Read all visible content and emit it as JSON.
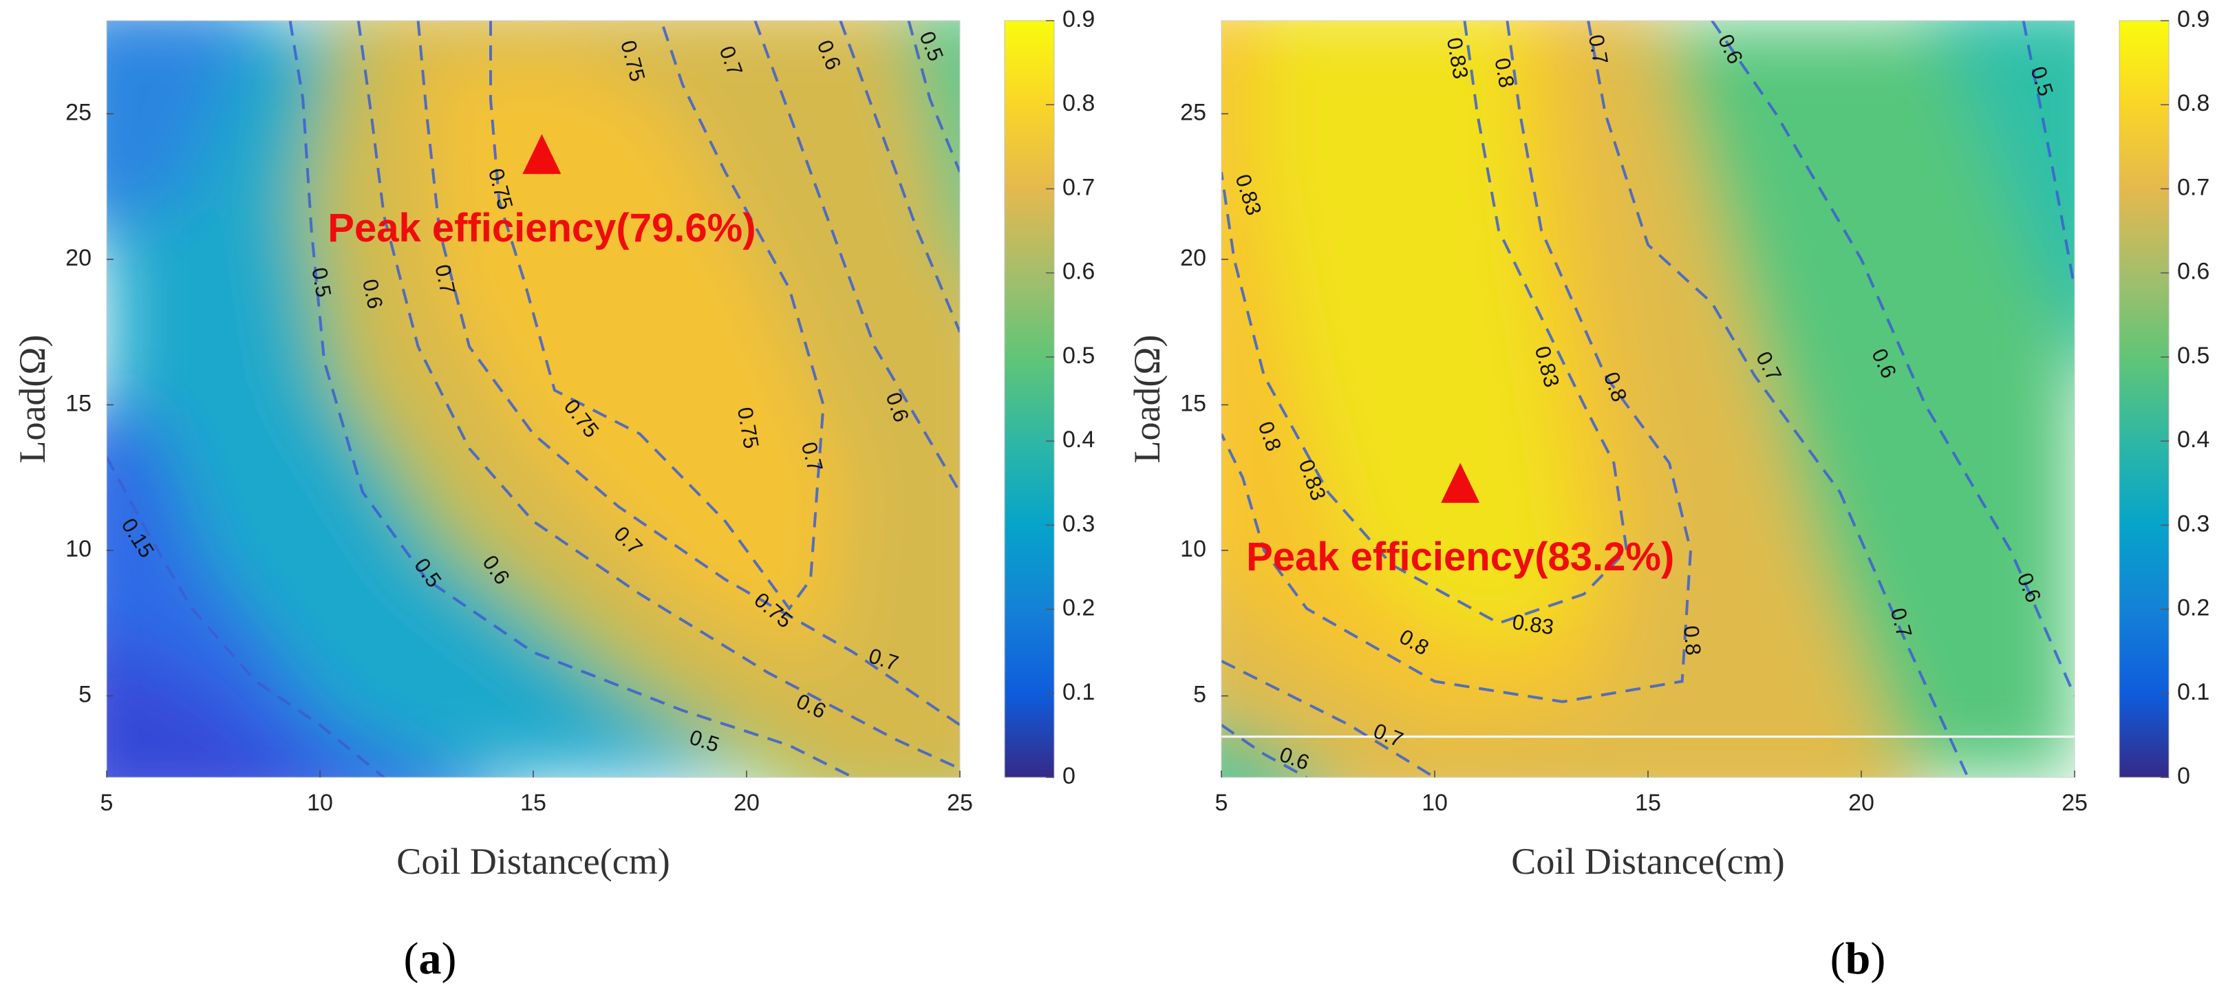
{
  "chart_data": [
    {
      "type": "heatmap",
      "subtype": "filled-contour",
      "panel_label": "a",
      "xlabel": "Coil Distance(cm)",
      "ylabel": "Load(Ω)",
      "xlim": [
        5,
        25
      ],
      "ylim": [
        2.2,
        28.2
      ],
      "xticks": [
        5,
        10,
        15,
        20,
        25
      ],
      "yticks": [
        5,
        10,
        15,
        20,
        25
      ],
      "colorbar": {
        "min": 0,
        "max": 0.9,
        "ticks": [
          0,
          0.1,
          0.2,
          0.3,
          0.4,
          0.5,
          0.6,
          0.7,
          0.8,
          0.9
        ]
      },
      "peak": {
        "x": 15.2,
        "y": 23.5,
        "label": "Peak efficiency(79.6%)",
        "value": 0.796
      },
      "contours": [
        {
          "level": 0.15,
          "points": [
            [
              5,
              13.2
            ],
            [
              6,
              10.5
            ],
            [
              7,
              8
            ],
            [
              8.5,
              5.5
            ],
            [
              10,
              4
            ],
            [
              11.5,
              2.2
            ]
          ],
          "labels": [
            {
              "text": "0.15",
              "x": 5.7,
              "y": 10.4,
              "angle": 58
            }
          ]
        },
        {
          "level": 0.5,
          "points": [
            [
              9.3,
              28.2
            ],
            [
              9.6,
              25.5
            ],
            [
              9.8,
              21
            ],
            [
              10.1,
              16.5
            ],
            [
              11,
              12
            ],
            [
              12.5,
              9
            ],
            [
              15,
              6.5
            ],
            [
              18.5,
              4.5
            ],
            [
              21,
              3.3
            ],
            [
              22.5,
              2.2
            ]
          ],
          "labels": [
            {
              "text": "0.5",
              "x": 10,
              "y": 19.2,
              "angle": 80
            },
            {
              "text": "0.5",
              "x": 12.5,
              "y": 9.2,
              "angle": 55
            },
            {
              "text": "0.5",
              "x": 19,
              "y": 3.4,
              "angle": 18
            }
          ]
        },
        {
          "level": 0.6,
          "points": [
            [
              10.9,
              28.2
            ],
            [
              11.2,
              25
            ],
            [
              11.5,
              21.5
            ],
            [
              12.3,
              17
            ],
            [
              13.5,
              13.5
            ],
            [
              15,
              11
            ],
            [
              17.5,
              8.5
            ],
            [
              20.5,
              5.8
            ],
            [
              23.5,
              3.5
            ],
            [
              25,
              2.5
            ]
          ],
          "labels": [
            {
              "text": "0.6",
              "x": 11.2,
              "y": 18.8,
              "angle": 78
            },
            {
              "text": "0.6",
              "x": 14.1,
              "y": 9.3,
              "angle": 55
            },
            {
              "text": "0.6",
              "x": 21.5,
              "y": 4.6,
              "angle": 25
            }
          ]
        },
        {
          "level": 0.7,
          "points": [
            [
              12.3,
              28.2
            ],
            [
              12.5,
              25
            ],
            [
              12.8,
              21
            ],
            [
              13.5,
              17
            ],
            [
              15,
              14
            ],
            [
              17,
              11.5
            ],
            [
              19.5,
              9
            ],
            [
              22.5,
              6.5
            ],
            [
              25,
              4
            ]
          ],
          "labels": [
            {
              "text": "0.7",
              "x": 12.9,
              "y": 19.3,
              "angle": 78
            },
            {
              "text": "0.7",
              "x": 17.2,
              "y": 10.3,
              "angle": 45
            },
            {
              "text": "0.7",
              "x": 23.2,
              "y": 6.2,
              "angle": 18
            }
          ]
        },
        {
          "level": 0.75,
          "points": [
            [
              14,
              28.2
            ],
            [
              14,
              25.5
            ],
            [
              14.2,
              22
            ],
            [
              14.8,
              19.2
            ],
            [
              15.5,
              15.5
            ],
            [
              17.5,
              14
            ],
            [
              19.5,
              11
            ],
            [
              21,
              8
            ],
            [
              21.5,
              9
            ],
            [
              21.8,
              15
            ],
            [
              21,
              19
            ],
            [
              19.5,
              23
            ],
            [
              18.5,
              26
            ],
            [
              18,
              28.2
            ]
          ],
          "labels": [
            {
              "text": "0.75",
              "x": 14.2,
              "y": 22.4,
              "angle": 75
            },
            {
              "text": "0.75",
              "x": 16.1,
              "y": 14.5,
              "angle": 52
            },
            {
              "text": "0.75",
              "x": 20.6,
              "y": 7.9,
              "angle": 40
            },
            {
              "text": "0.75",
              "x": 20,
              "y": 14.2,
              "angle": 80
            },
            {
              "text": "0.75",
              "x": 17.3,
              "y": 26.8,
              "angle": 75
            }
          ]
        },
        {
          "level": 0.7,
          "points": [
            [
              20.2,
              28.2
            ],
            [
              21,
              25
            ],
            [
              22,
              21
            ],
            [
              23,
              17
            ],
            [
              25,
              12
            ]
          ],
          "labels": [
            {
              "text": "0.7",
              "x": 19.6,
              "y": 26.8,
              "angle": 70
            },
            {
              "text": "0.7",
              "x": 21.5,
              "y": 13.2,
              "angle": 75
            }
          ]
        },
        {
          "level": 0.6,
          "points": [
            [
              22.2,
              28.2
            ],
            [
              23,
              25
            ],
            [
              24,
              21
            ],
            [
              25,
              17.5
            ]
          ],
          "labels": [
            {
              "text": "0.6",
              "x": 21.9,
              "y": 27,
              "angle": 68
            },
            {
              "text": "0.6",
              "x": 23.5,
              "y": 14.9,
              "angle": 70
            }
          ]
        },
        {
          "level": 0.5,
          "points": [
            [
              23.8,
              28.2
            ],
            [
              24.3,
              25.5
            ],
            [
              25,
              23
            ]
          ],
          "labels": [
            {
              "text": "0.5",
              "x": 24.3,
              "y": 27.3,
              "angle": 68
            }
          ]
        }
      ]
    },
    {
      "type": "heatmap",
      "subtype": "filled-contour",
      "panel_label": "b",
      "xlabel": "Coil Distance(cm)",
      "ylabel": "Load(Ω)",
      "xlim": [
        5,
        25
      ],
      "ylim": [
        2.2,
        28.2
      ],
      "xticks": [
        5,
        10,
        15,
        20,
        25
      ],
      "yticks": [
        5,
        10,
        15,
        20,
        25
      ],
      "colorbar": {
        "min": 0,
        "max": 0.9,
        "ticks": [
          0,
          0.1,
          0.2,
          0.3,
          0.4,
          0.5,
          0.6,
          0.7,
          0.8,
          0.9
        ]
      },
      "peak": {
        "x": 10.6,
        "y": 12.2,
        "label": "Peak efficiency(83.2%)",
        "value": 0.832
      },
      "horizontal_line_y": 3.6,
      "contours": [
        {
          "level": 0.83,
          "points": [
            [
              10.7,
              28.2
            ],
            [
              11,
              25
            ],
            [
              11.5,
              21
            ],
            [
              12.5,
              18
            ],
            [
              13.5,
              15
            ],
            [
              14.2,
              13
            ],
            [
              14.5,
              10
            ],
            [
              13.5,
              8.5
            ],
            [
              11.5,
              7.5
            ],
            [
              9,
              9.5
            ],
            [
              7.5,
              12
            ],
            [
              6,
              16
            ],
            [
              5.3,
              20
            ],
            [
              5,
              23
            ]
          ],
          "labels": [
            {
              "text": "0.83",
              "x": 10.5,
              "y": 26.9,
              "angle": 80
            },
            {
              "text": "0.83",
              "x": 5.6,
              "y": 22.2,
              "angle": 72
            },
            {
              "text": "0.83",
              "x": 12.6,
              "y": 16.3,
              "angle": 75
            },
            {
              "text": "0.83",
              "x": 7.1,
              "y": 12.4,
              "angle": 70
            },
            {
              "text": "0.83",
              "x": 12.3,
              "y": 7.4,
              "angle": 8
            }
          ]
        },
        {
          "level": 0.8,
          "points": [
            [
              11.7,
              28.2
            ],
            [
              12,
              25
            ],
            [
              12.5,
              21
            ],
            [
              14,
              16
            ],
            [
              15.5,
              13
            ],
            [
              16,
              10
            ],
            [
              15.8,
              5.5
            ],
            [
              13,
              4.8
            ],
            [
              10,
              5.5
            ],
            [
              7,
              8
            ],
            [
              6,
              10
            ],
            [
              5.5,
              12.5
            ],
            [
              5,
              14
            ]
          ],
          "labels": [
            {
              "text": "0.8",
              "x": 11.6,
              "y": 26.4,
              "angle": 80
            },
            {
              "text": "0.8",
              "x": 14.2,
              "y": 15.6,
              "angle": 70
            },
            {
              "text": "0.8",
              "x": 16,
              "y": 6.9,
              "angle": 85
            },
            {
              "text": "0.8",
              "x": 9.5,
              "y": 6.8,
              "angle": 30
            },
            {
              "text": "0.8",
              "x": 6.1,
              "y": 13.9,
              "angle": 70
            }
          ]
        },
        {
          "level": 0.7,
          "points": [
            [
              13.6,
              28.2
            ],
            [
              14,
              25
            ],
            [
              15,
              20.5
            ],
            [
              16.5,
              18.5
            ],
            [
              17.5,
              16
            ],
            [
              19.5,
              12
            ],
            [
              21,
              7
            ],
            [
              22.5,
              2.2
            ]
          ],
          "labels": [
            {
              "text": "0.7",
              "x": 13.8,
              "y": 27.2,
              "angle": 80
            },
            {
              "text": "0.7",
              "x": 17.8,
              "y": 16.3,
              "angle": 62
            },
            {
              "text": "0.7",
              "x": 20.9,
              "y": 7.5,
              "angle": 75
            }
          ]
        },
        {
          "level": 0.7,
          "points": [
            [
              5,
              6.2
            ],
            [
              8,
              4
            ],
            [
              10,
              2.2
            ]
          ],
          "labels": [
            {
              "text": "0.7",
              "x": 8.9,
              "y": 3.6,
              "angle": 22
            }
          ]
        },
        {
          "level": 0.6,
          "points": [
            [
              16.5,
              28.2
            ],
            [
              18,
              25
            ],
            [
              20,
              20
            ],
            [
              21.5,
              15
            ],
            [
              23.5,
              10
            ],
            [
              25,
              5
            ]
          ],
          "labels": [
            {
              "text": "0.6",
              "x": 16.9,
              "y": 27.2,
              "angle": 65
            },
            {
              "text": "0.6",
              "x": 20.5,
              "y": 16.4,
              "angle": 65
            },
            {
              "text": "0.6",
              "x": 23.9,
              "y": 8.7,
              "angle": 68
            }
          ]
        },
        {
          "level": 0.6,
          "points": [
            [
              5,
              4
            ],
            [
              6,
              3
            ],
            [
              7,
              2.2
            ]
          ],
          "labels": [
            {
              "text": "0.6",
              "x": 6.7,
              "y": 2.8,
              "angle": 20
            }
          ]
        },
        {
          "level": 0.5,
          "points": [
            [
              23.8,
              28.2
            ],
            [
              24.5,
              23
            ],
            [
              25,
              19
            ]
          ],
          "labels": [
            {
              "text": "0.5",
              "x": 24.2,
              "y": 26.1,
              "angle": 72
            }
          ]
        }
      ]
    }
  ]
}
